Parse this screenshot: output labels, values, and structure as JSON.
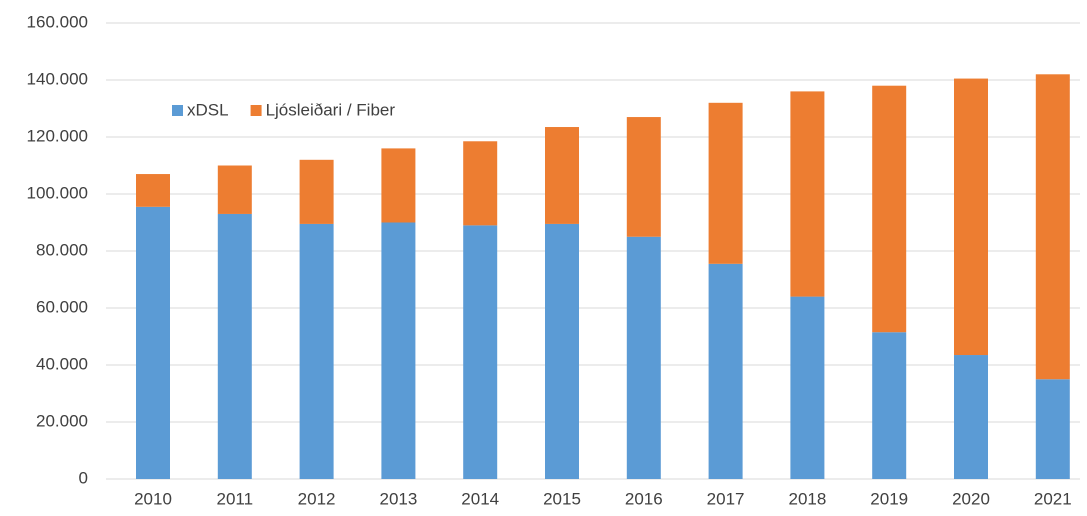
{
  "chart_data": {
    "type": "stacked_bar",
    "categories": [
      "2010",
      "2011",
      "2012",
      "2013",
      "2014",
      "2015",
      "2016",
      "2017",
      "2018",
      "2019",
      "2020",
      "2021"
    ],
    "series": [
      {
        "name": "xDSL",
        "color": "#5b9bd5",
        "values": [
          95500,
          93000,
          89500,
          90000,
          89000,
          89500,
          85000,
          75500,
          64000,
          51500,
          43500,
          35000
        ]
      },
      {
        "name": "Ljósleiðari / Fiber",
        "color": "#ed7d31",
        "values": [
          11500,
          17000,
          22500,
          26000,
          29500,
          34000,
          42000,
          56500,
          72000,
          86500,
          97000,
          107000
        ]
      }
    ],
    "ylim": [
      0,
      160000
    ],
    "yticks": [
      0,
      {
        "value": 20000,
        "label": "20.000"
      },
      {
        "value": 40000,
        "label": "40.000"
      },
      {
        "value": 60000,
        "label": "60.000"
      },
      {
        "value": 80000,
        "label": "80.000"
      },
      {
        "value": 100000,
        "label": "100.000"
      },
      {
        "value": 120000,
        "label": "120.000"
      },
      {
        "value": 140000,
        "label": "140.000"
      },
      {
        "value": 160000,
        "label": "160.000"
      }
    ],
    "grid": true,
    "legend": "top-left"
  }
}
